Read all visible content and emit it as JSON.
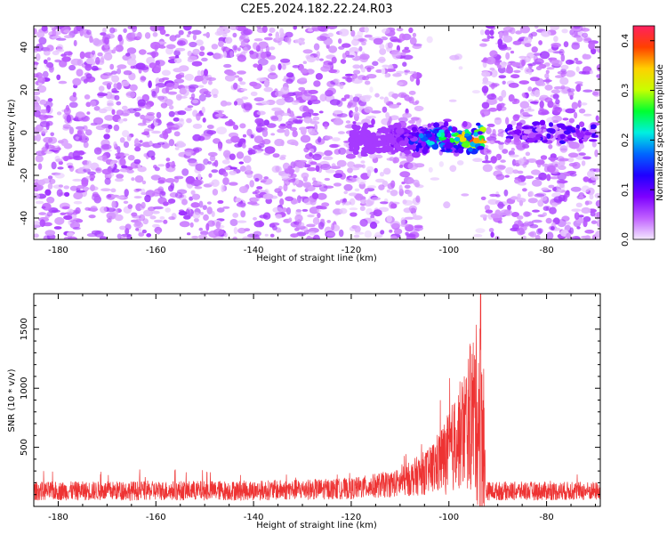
{
  "title": "C2E5.2024.182.22.24.R03",
  "chart_data": [
    {
      "type": "heatmap",
      "xlabel": "Height of straight line (km)",
      "ylabel": "Frequency (Hz)",
      "xlim": [
        -185,
        -69
      ],
      "ylim": [
        -50,
        50
      ],
      "x_ticks": [
        -180,
        -160,
        -140,
        -120,
        -100,
        -80
      ],
      "y_ticks": [
        -40,
        -20,
        0,
        20,
        40
      ],
      "colorbar": {
        "label": "Normalized spectral amplitude",
        "range": [
          0,
          0.43
        ],
        "ticks": [
          0.0,
          0.1,
          0.2,
          0.3,
          0.4
        ],
        "colors": [
          "#f4e8ff",
          "#c060ff",
          "#7d00ff",
          "#2000ff",
          "#0066ff",
          "#00f0e0",
          "#00ff30",
          "#c8ff00",
          "#ffd000",
          "#ff4000",
          "#ff2060"
        ]
      },
      "features": {
        "signal_band": {
          "x_range": [
            -120,
            -93
          ],
          "frequency_center": -3,
          "half_width_hz": 7,
          "peak_amplitude": 0.42
        },
        "weak_band": {
          "x_range": [
            -88,
            -70
          ],
          "frequency_center": 0,
          "peak_amplitude": 0.12
        },
        "gap_x_range": [
          -106,
          -93
        ],
        "noise_amplitude": 0.05
      },
      "grid": false,
      "legend": "none"
    },
    {
      "type": "line",
      "xlabel": "Height of straight line (km)",
      "ylabel": "SNR (10 * v/v)",
      "xlim": [
        -185,
        -69
      ],
      "ylim": [
        0,
        1800
      ],
      "x_ticks": [
        -180,
        -160,
        -140,
        -120,
        -100,
        -80
      ],
      "y_ticks": [
        500,
        1000,
        1500
      ],
      "color": "#ee3333",
      "series_profile": [
        {
          "x": -185,
          "median": 130,
          "spread": 80
        },
        {
          "x": -140,
          "median": 135,
          "spread": 85
        },
        {
          "x": -120,
          "median": 150,
          "spread": 90
        },
        {
          "x": -110,
          "median": 200,
          "spread": 120
        },
        {
          "x": -104,
          "median": 300,
          "spread": 200
        },
        {
          "x": -100,
          "median": 450,
          "spread": 350
        },
        {
          "x": -97,
          "median": 650,
          "spread": 500
        },
        {
          "x": -95,
          "median": 800,
          "spread": 700
        },
        {
          "x": -93,
          "median": 750,
          "spread": 900
        },
        {
          "x": -92.5,
          "median": 130,
          "spread": 80
        },
        {
          "x": -69,
          "median": 130,
          "spread": 80
        }
      ],
      "peak_value": 1800,
      "peak_x": -93.5,
      "grid": false,
      "legend": "none"
    }
  ]
}
